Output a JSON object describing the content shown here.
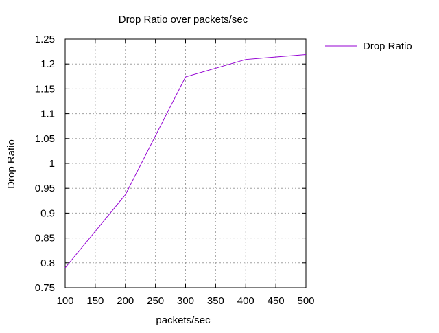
{
  "chart_data": {
    "type": "line",
    "title": "Drop Ratio over packets/sec",
    "xlabel": "packets/sec",
    "ylabel": "Drop Ratio",
    "xlim": [
      100,
      500
    ],
    "ylim": [
      0.75,
      1.25
    ],
    "x_ticks": [
      "100",
      "150",
      "200",
      "250",
      "300",
      "350",
      "400",
      "450",
      "500"
    ],
    "y_ticks": [
      "0.75",
      "0.8",
      "0.85",
      "0.9",
      "0.95",
      "1",
      "1.05",
      "1.1",
      "1.15",
      "1.2",
      "1.25"
    ],
    "grid": true,
    "legend_position": "top-right outside plot",
    "series": [
      {
        "name": "Drop Ratio",
        "color": "#9400d3",
        "x": [
          100,
          200,
          300,
          400,
          500
        ],
        "y": [
          0.79,
          0.937,
          1.174,
          1.209,
          1.219
        ]
      }
    ]
  }
}
